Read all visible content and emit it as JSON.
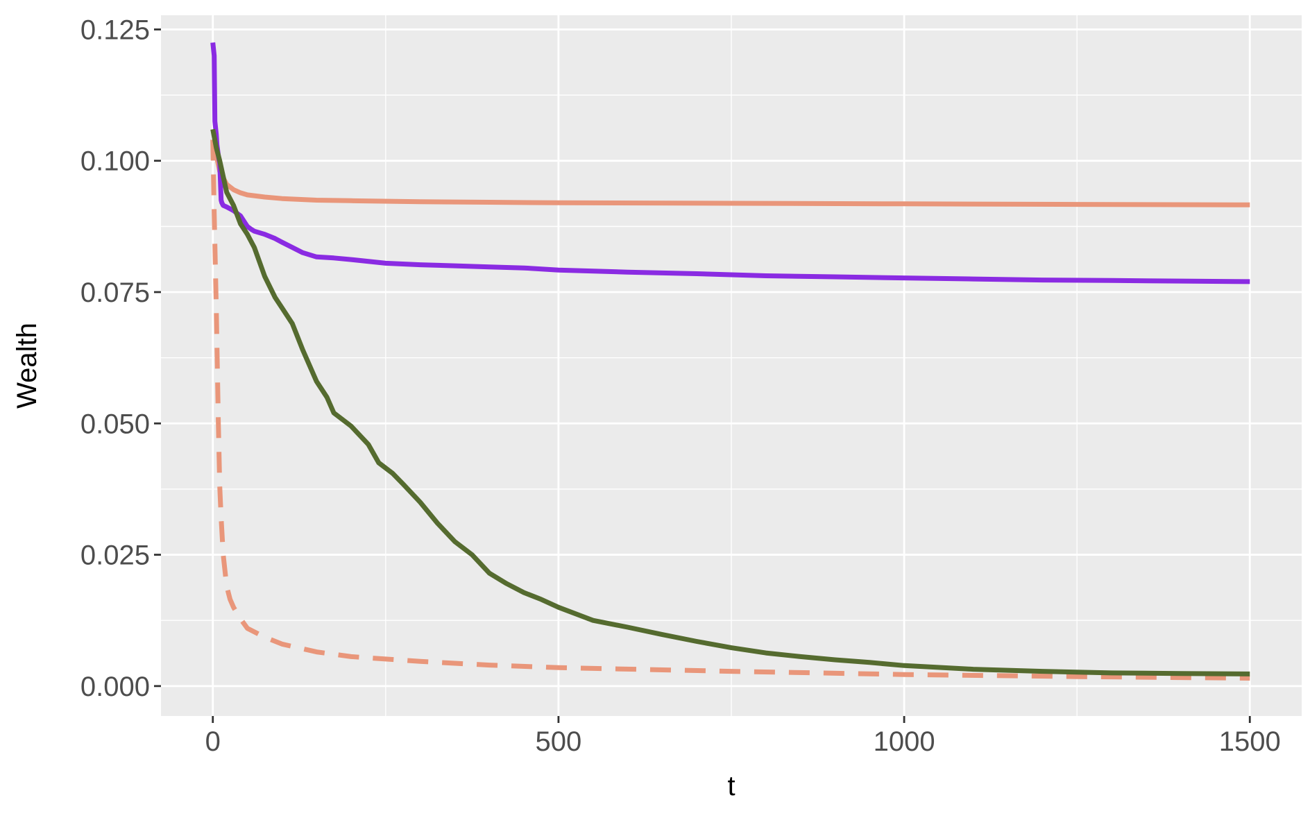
{
  "chart_data": {
    "type": "line",
    "title": "",
    "xlabel": "t",
    "ylabel": "Wealth",
    "xlim": [
      -75,
      1575
    ],
    "ylim": [
      -0.0057,
      0.1277
    ],
    "x_ticks": [
      0,
      500,
      1000,
      1500
    ],
    "x_tick_labels": [
      "0",
      "500",
      "1000",
      "1500"
    ],
    "x_minor_ticks": [
      250,
      750,
      1250
    ],
    "y_ticks": [
      0,
      0.025,
      0.05,
      0.075,
      0.1,
      0.125
    ],
    "y_tick_labels": [
      "0.000",
      "0.025",
      "0.050",
      "0.075",
      "0.100",
      "0.125"
    ],
    "y_minor_ticks": [
      0.0125,
      0.0375,
      0.0625,
      0.0875,
      0.1125
    ],
    "grid": true,
    "legend": "none",
    "colors": {
      "panel_background": "#ebebeb",
      "grid": "#ffffff",
      "salmon": "#e9967a",
      "purple": "#8a2be2",
      "olive": "#556b2f"
    },
    "series": [
      {
        "color": "#e9967a",
        "dash": false,
        "x": [
          0,
          10,
          20,
          30,
          40,
          50,
          75,
          100,
          150,
          200,
          300,
          400,
          500,
          750,
          1000,
          1250,
          1500
        ],
        "y": [
          0.104,
          0.098,
          0.0955,
          0.0945,
          0.0939,
          0.0935,
          0.0931,
          0.0928,
          0.0925,
          0.0924,
          0.0922,
          0.0921,
          0.092,
          0.0919,
          0.0918,
          0.0917,
          0.0916
        ]
      },
      {
        "color": "#e9967a",
        "dash": true,
        "x": [
          0,
          2,
          5,
          8,
          10,
          12,
          15,
          20,
          25,
          30,
          40,
          50,
          75,
          100,
          150,
          200,
          300,
          400,
          500,
          750,
          1000,
          1250,
          1500
        ],
        "y": [
          0.104,
          0.09,
          0.072,
          0.05,
          0.038,
          0.032,
          0.025,
          0.019,
          0.0165,
          0.015,
          0.0128,
          0.011,
          0.0093,
          0.008,
          0.0065,
          0.0056,
          0.0047,
          0.004,
          0.0035,
          0.0028,
          0.0022,
          0.0018,
          0.0015
        ]
      },
      {
        "color": "#8a2be2",
        "dash": false,
        "x": [
          0,
          2,
          3,
          5,
          6,
          8,
          10,
          12,
          13,
          15,
          20,
          30,
          40,
          50,
          55,
          60,
          75,
          90,
          100,
          115,
          130,
          150,
          175,
          200,
          250,
          300,
          350,
          400,
          450,
          500,
          600,
          700,
          800,
          900,
          1000,
          1100,
          1200,
          1300,
          1400,
          1500
        ],
        "y": [
          0.1225,
          0.12,
          0.1075,
          0.105,
          0.103,
          0.101,
          0.0995,
          0.0925,
          0.092,
          0.0915,
          0.0912,
          0.0905,
          0.0895,
          0.0875,
          0.087,
          0.0866,
          0.086,
          0.0852,
          0.0845,
          0.0835,
          0.0825,
          0.0817,
          0.0815,
          0.0812,
          0.0805,
          0.0802,
          0.08,
          0.0798,
          0.0796,
          0.0792,
          0.0788,
          0.0785,
          0.0781,
          0.0779,
          0.0777,
          0.0775,
          0.0773,
          0.0772,
          0.0771,
          0.077
        ]
      },
      {
        "color": "#556b2f",
        "dash": false,
        "x": [
          0,
          5,
          10,
          15,
          20,
          30,
          40,
          50,
          60,
          75,
          90,
          100,
          115,
          130,
          150,
          165,
          175,
          200,
          225,
          240,
          260,
          275,
          300,
          325,
          350,
          375,
          400,
          425,
          450,
          475,
          500,
          550,
          600,
          650,
          700,
          750,
          800,
          850,
          900,
          950,
          1000,
          1100,
          1200,
          1300,
          1400,
          1500
        ],
        "y": [
          0.106,
          0.1025,
          0.1,
          0.097,
          0.094,
          0.0915,
          0.088,
          0.086,
          0.0835,
          0.078,
          0.074,
          0.072,
          0.069,
          0.064,
          0.058,
          0.055,
          0.052,
          0.0495,
          0.046,
          0.0425,
          0.0405,
          0.0385,
          0.035,
          0.031,
          0.0275,
          0.025,
          0.0215,
          0.0195,
          0.0178,
          0.0165,
          0.015,
          0.0125,
          0.0112,
          0.0098,
          0.0085,
          0.0073,
          0.0063,
          0.0056,
          0.005,
          0.0045,
          0.0039,
          0.0032,
          0.0028,
          0.0025,
          0.0024,
          0.0023
        ]
      }
    ]
  }
}
